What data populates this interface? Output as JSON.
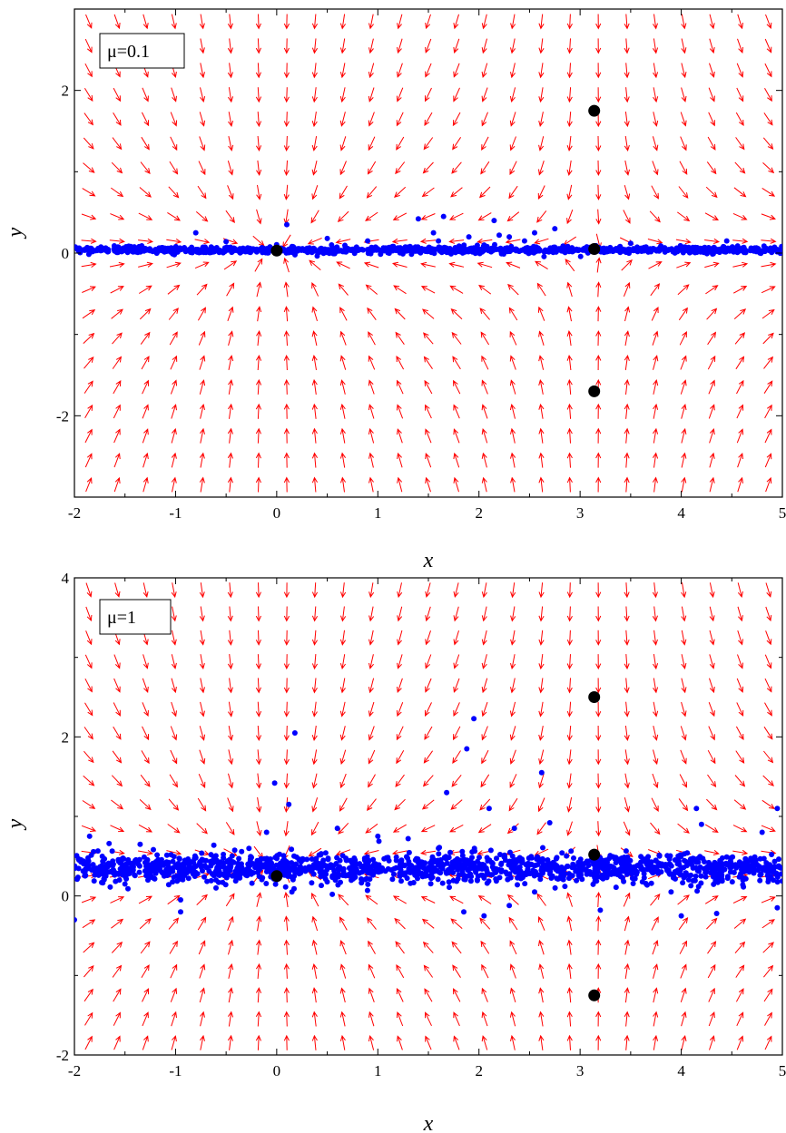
{
  "chart_data": [
    {
      "type": "scatter",
      "panel_label": "μ=0.1",
      "xlabel": "x",
      "ylabel": "y",
      "xlim": [
        -2,
        5
      ],
      "ylim": [
        -3,
        3
      ],
      "x_ticks": [
        -2,
        -1,
        0,
        1,
        2,
        3,
        4,
        5
      ],
      "x_tick_labels": [
        "-2",
        "-1",
        "0",
        "1",
        "2",
        "3",
        "4",
        "5"
      ],
      "y_ticks": [
        -2,
        0,
        2
      ],
      "y_tick_labels": [
        "-2",
        "0",
        "2"
      ],
      "legend_position": "top-left",
      "colors": {
        "vector_field": "#ff0000",
        "samples": "#0000ff",
        "fixed_points": "#000000"
      },
      "fixed_points": [
        {
          "x": 0.0,
          "y": 0.03
        },
        {
          "x": 3.14,
          "y": 1.75
        },
        {
          "x": 3.14,
          "y": 0.05
        },
        {
          "x": 3.14,
          "y": -1.7
        }
      ],
      "vector_field": {
        "x_centers": [
          0.0,
          3.14
        ],
        "y_center": 0.05,
        "grid_columns": 25,
        "grid_rows": 20
      },
      "samples": {
        "band_center_y": 0.04,
        "band_spread": 0.02,
        "count": 1100,
        "outliers": [
          {
            "x": -0.8,
            "y": 0.25
          },
          {
            "x": -0.5,
            "y": 0.14
          },
          {
            "x": 0.1,
            "y": 0.35
          },
          {
            "x": 0.5,
            "y": 0.18
          },
          {
            "x": 0.9,
            "y": 0.15
          },
          {
            "x": 1.4,
            "y": 0.42
          },
          {
            "x": 1.55,
            "y": 0.25
          },
          {
            "x": 1.65,
            "y": 0.45
          },
          {
            "x": 1.9,
            "y": 0.2
          },
          {
            "x": 2.15,
            "y": 0.4
          },
          {
            "x": 2.2,
            "y": 0.22
          },
          {
            "x": 2.3,
            "y": 0.2
          },
          {
            "x": 2.55,
            "y": 0.25
          },
          {
            "x": 2.75,
            "y": 0.3
          },
          {
            "x": 2.45,
            "y": 0.15
          },
          {
            "x": 1.6,
            "y": 0.15
          },
          {
            "x": 4.45,
            "y": 0.15
          },
          {
            "x": 3.5,
            "y": 0.12
          }
        ]
      }
    },
    {
      "type": "scatter",
      "panel_label": "μ=1",
      "xlabel": "x",
      "ylabel": "y",
      "xlim": [
        -2,
        5
      ],
      "ylim": [
        -2,
        4
      ],
      "x_ticks": [
        -2,
        -1,
        0,
        1,
        2,
        3,
        4,
        5
      ],
      "x_tick_labels": [
        "-2",
        "-1",
        "0",
        "1",
        "2",
        "3",
        "4",
        "5"
      ],
      "y_ticks": [
        -2,
        0,
        2,
        4
      ],
      "y_tick_labels": [
        "-2",
        "0",
        "2",
        "4"
      ],
      "legend_position": "top-left",
      "colors": {
        "vector_field": "#ff0000",
        "samples": "#0000ff",
        "fixed_points": "#000000"
      },
      "fixed_points": [
        {
          "x": 0.0,
          "y": 0.25
        },
        {
          "x": 3.14,
          "y": 2.5
        },
        {
          "x": 3.14,
          "y": 0.52
        },
        {
          "x": 3.14,
          "y": -1.25
        }
      ],
      "vector_field": {
        "x_centers": [
          0.0,
          3.14
        ],
        "y_center": 0.4,
        "grid_columns": 25,
        "grid_rows": 20
      },
      "samples": {
        "band_center_y": 0.35,
        "band_spread": 0.09,
        "count": 1500,
        "outliers": [
          {
            "x": -2.0,
            "y": -0.3
          },
          {
            "x": -1.85,
            "y": 0.75
          },
          {
            "x": -1.5,
            "y": 0.15
          },
          {
            "x": -1.35,
            "y": 0.65
          },
          {
            "x": -0.95,
            "y": -0.05
          },
          {
            "x": -0.95,
            "y": -0.2
          },
          {
            "x": -0.6,
            "y": 0.1
          },
          {
            "x": -0.1,
            "y": 0.8
          },
          {
            "x": -0.02,
            "y": 1.42
          },
          {
            "x": 0.12,
            "y": 1.15
          },
          {
            "x": 0.18,
            "y": 2.05
          },
          {
            "x": 0.15,
            "y": 0.05
          },
          {
            "x": 0.55,
            "y": 0.02
          },
          {
            "x": 0.6,
            "y": 0.85
          },
          {
            "x": 1.0,
            "y": 0.75
          },
          {
            "x": 1.3,
            "y": 0.72
          },
          {
            "x": 1.6,
            "y": 0.6
          },
          {
            "x": 1.68,
            "y": 1.3
          },
          {
            "x": 1.88,
            "y": 1.85
          },
          {
            "x": 1.95,
            "y": 2.23
          },
          {
            "x": 1.85,
            "y": -0.2
          },
          {
            "x": 2.05,
            "y": -0.25
          },
          {
            "x": 2.1,
            "y": 1.1
          },
          {
            "x": 2.3,
            "y": -0.12
          },
          {
            "x": 2.35,
            "y": 0.85
          },
          {
            "x": 2.55,
            "y": 0.05
          },
          {
            "x": 2.62,
            "y": 1.55
          },
          {
            "x": 2.7,
            "y": 0.92
          },
          {
            "x": 2.85,
            "y": 0.12
          },
          {
            "x": 3.2,
            "y": -0.18
          },
          {
            "x": 3.5,
            "y": 0.3
          },
          {
            "x": 3.9,
            "y": 0.05
          },
          {
            "x": 4.0,
            "y": -0.25
          },
          {
            "x": 4.15,
            "y": 1.1
          },
          {
            "x": 4.2,
            "y": 0.9
          },
          {
            "x": 4.35,
            "y": -0.22
          },
          {
            "x": 4.8,
            "y": 0.8
          },
          {
            "x": 4.95,
            "y": 1.1
          },
          {
            "x": 4.95,
            "y": -0.15
          }
        ]
      }
    }
  ]
}
